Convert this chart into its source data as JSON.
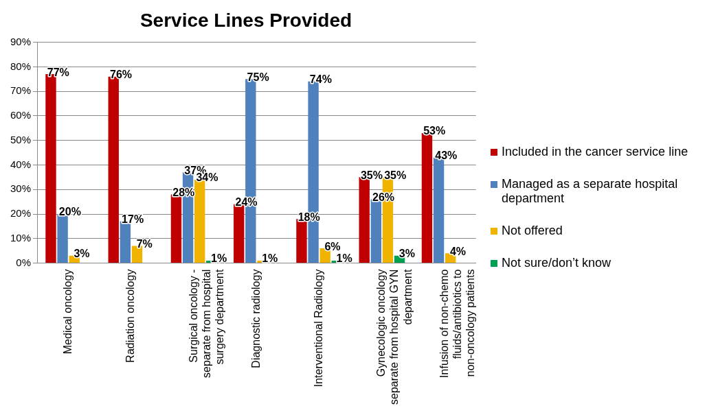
{
  "chart_data": {
    "type": "bar",
    "title": "Service Lines Provided",
    "categories": [
      "Medical oncology",
      "Radiation oncology",
      "Surgical oncology - separate from hospital surgery department",
      "Diagnostic radiology",
      "Interventional Radiology",
      "Gynecologic oncology separate from hospital GYN department",
      "Infusion of non-chemo fluids/antibiotics to non-oncology patients"
    ],
    "series": [
      {
        "name": "Included in the cancer service line",
        "color": "#c00000",
        "values": [
          77,
          76,
          28,
          24,
          18,
          35,
          53
        ],
        "value_labels": [
          "77%",
          "76%",
          "28%",
          "24%",
          "18%",
          "35%",
          "53%"
        ]
      },
      {
        "name": "Managed as a separate hospital department",
        "color": "#4f81bd",
        "values": [
          20,
          17,
          37,
          75,
          74,
          26,
          43
        ],
        "value_labels": [
          "20%",
          "17%",
          "37%",
          "75%",
          "74%",
          "26%",
          "43%"
        ]
      },
      {
        "name": "Not offered",
        "color": "#f0b400",
        "values": [
          3,
          7,
          34,
          1,
          6,
          35,
          4
        ],
        "value_labels": [
          "3%",
          "7%",
          "34%",
          "1%",
          "6%",
          "35%",
          "4%"
        ]
      },
      {
        "name": "Not sure/don’t know",
        "color": "#00a050",
        "values": [
          null,
          null,
          1,
          null,
          1,
          3,
          null
        ],
        "value_labels": [
          null,
          null,
          "1%",
          null,
          "1%",
          "3%",
          null
        ]
      }
    ],
    "ylim": [
      0,
      90
    ],
    "yticks": [
      {
        "value": 0,
        "label": "0%"
      },
      {
        "value": 10,
        "label": "10%"
      },
      {
        "value": 20,
        "label": "20%"
      },
      {
        "value": 30,
        "label": "30%"
      },
      {
        "value": 40,
        "label": "40%"
      },
      {
        "value": 50,
        "label": "50%"
      },
      {
        "value": 60,
        "label": "60%"
      },
      {
        "value": 70,
        "label": "70%"
      },
      {
        "value": 80,
        "label": "80%"
      },
      {
        "value": 90,
        "label": "90%"
      }
    ],
    "grid": "y",
    "legend": "right"
  }
}
